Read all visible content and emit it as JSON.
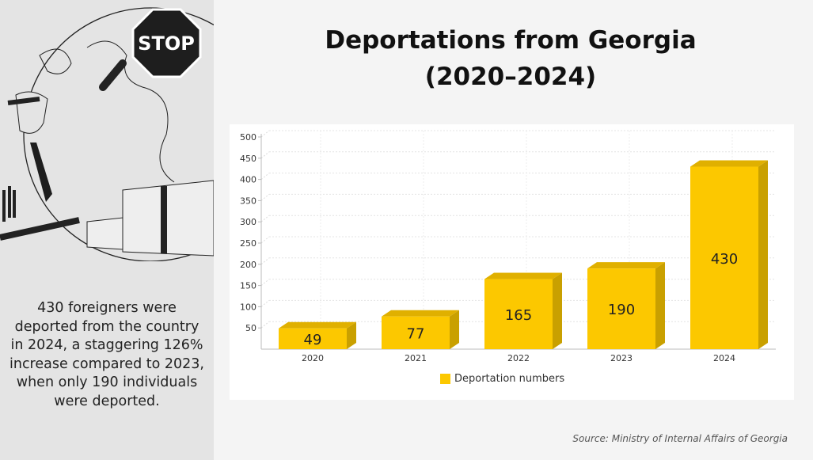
{
  "title_line1": "Deportations from Georgia",
  "title_line2": "(2020–2024)",
  "summary": "430 foreigners were deported from the country in 2024, a staggering 126% increase compared to 2023, when only 190 individuals were deported.",
  "illustration": {
    "sign_text": "STOP"
  },
  "source": "Source: Ministry of Internal Affairs of Georgia",
  "chart_data": {
    "type": "bar",
    "title": "Deportations from Georgia (2020–2024)",
    "categories": [
      "2020",
      "2021",
      "2022",
      "2023",
      "2024"
    ],
    "series": [
      {
        "name": "Deportation numbers",
        "values": [
          49,
          77,
          165,
          190,
          430
        ],
        "color": "#fcc800"
      }
    ],
    "yticks": [
      50,
      100,
      150,
      200,
      250,
      300,
      350,
      400,
      450,
      500
    ],
    "ylim": [
      0,
      500
    ],
    "grid": true,
    "legend": "bottom-center",
    "xlabel": "",
    "ylabel": ""
  }
}
